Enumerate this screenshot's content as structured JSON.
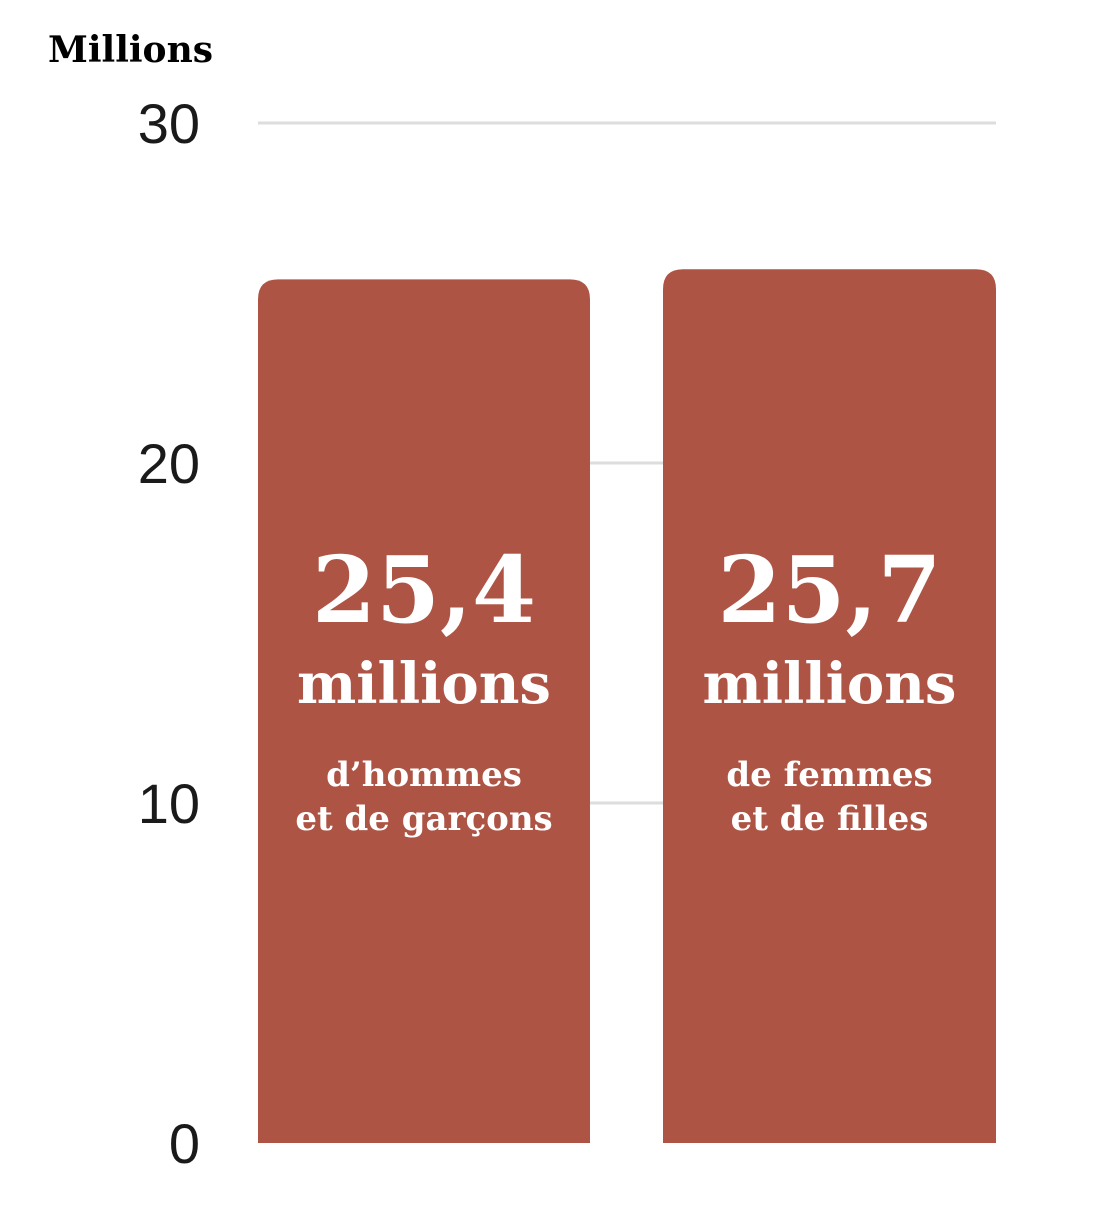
{
  "chart_data": {
    "type": "bar",
    "unit_label": "Millions",
    "categories": [
      "d’hommes et de garçons",
      "de femmes et de filles"
    ],
    "values": [
      25.4,
      25.7
    ],
    "ylim": [
      0,
      30
    ],
    "yticks": [
      0,
      10,
      20,
      30
    ],
    "grid": true,
    "bar_color": "#ae5444",
    "bar_labels": [
      {
        "value": "25,4",
        "unit": "millions",
        "line1": "d’hommes",
        "line2": "et de garçons"
      },
      {
        "value": "25,7",
        "unit": "millions",
        "line1": "de femmes",
        "line2": "et de filles"
      }
    ]
  }
}
